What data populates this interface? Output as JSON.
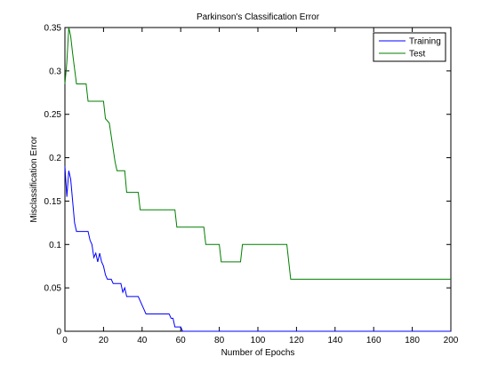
{
  "chart_data": {
    "type": "line",
    "title": "Parkinson's Classification Error",
    "xlabel": "Number of Epochs",
    "ylabel": "Misclassification Error",
    "xlim": [
      0,
      200
    ],
    "ylim": [
      0,
      0.35
    ],
    "x_ticks": [
      "0",
      "20",
      "40",
      "60",
      "80",
      "100",
      "120",
      "140",
      "160",
      "180",
      "200"
    ],
    "y_ticks": [
      "0",
      "0.05",
      "0.1",
      "0.15",
      "0.2",
      "0.25",
      "0.3",
      "0.35"
    ],
    "grid": false,
    "legend_position": "top-right",
    "series": [
      {
        "name": "Training",
        "color": "#0000ff",
        "points": [
          [
            0,
            0.19
          ],
          [
            1,
            0.155
          ],
          [
            2,
            0.185
          ],
          [
            3,
            0.175
          ],
          [
            4,
            0.15
          ],
          [
            5,
            0.125
          ],
          [
            6,
            0.115
          ],
          [
            12,
            0.115
          ],
          [
            13,
            0.105
          ],
          [
            14,
            0.1
          ],
          [
            15,
            0.085
          ],
          [
            16,
            0.09
          ],
          [
            17,
            0.08
          ],
          [
            18,
            0.09
          ],
          [
            19,
            0.08
          ],
          [
            20,
            0.075
          ],
          [
            21,
            0.065
          ],
          [
            22,
            0.06
          ],
          [
            24,
            0.06
          ],
          [
            25,
            0.055
          ],
          [
            29,
            0.055
          ],
          [
            30,
            0.045
          ],
          [
            31,
            0.05
          ],
          [
            32,
            0.04
          ],
          [
            38,
            0.04
          ],
          [
            39,
            0.035
          ],
          [
            40,
            0.03
          ],
          [
            41,
            0.025
          ],
          [
            42,
            0.02
          ],
          [
            54,
            0.02
          ],
          [
            55,
            0.015
          ],
          [
            56,
            0.015
          ],
          [
            57,
            0.005
          ],
          [
            60,
            0.005
          ],
          [
            61,
            0
          ],
          [
            200,
            0
          ]
        ]
      },
      {
        "name": "Test",
        "color": "#007f00",
        "points": [
          [
            0,
            0.285
          ],
          [
            1,
            0.31
          ],
          [
            2,
            0.35
          ],
          [
            3,
            0.34
          ],
          [
            4,
            0.32
          ],
          [
            6,
            0.285
          ],
          [
            11,
            0.285
          ],
          [
            12,
            0.265
          ],
          [
            20,
            0.265
          ],
          [
            21,
            0.245
          ],
          [
            23,
            0.24
          ],
          [
            24,
            0.225
          ],
          [
            25,
            0.21
          ],
          [
            26,
            0.195
          ],
          [
            27,
            0.185
          ],
          [
            31,
            0.185
          ],
          [
            32,
            0.16
          ],
          [
            38,
            0.16
          ],
          [
            39,
            0.14
          ],
          [
            57,
            0.14
          ],
          [
            58,
            0.12
          ],
          [
            72,
            0.12
          ],
          [
            73,
            0.1
          ],
          [
            80,
            0.1
          ],
          [
            81,
            0.08
          ],
          [
            91,
            0.08
          ],
          [
            92,
            0.1
          ],
          [
            115,
            0.1
          ],
          [
            117,
            0.06
          ],
          [
            200,
            0.06
          ]
        ]
      }
    ]
  }
}
